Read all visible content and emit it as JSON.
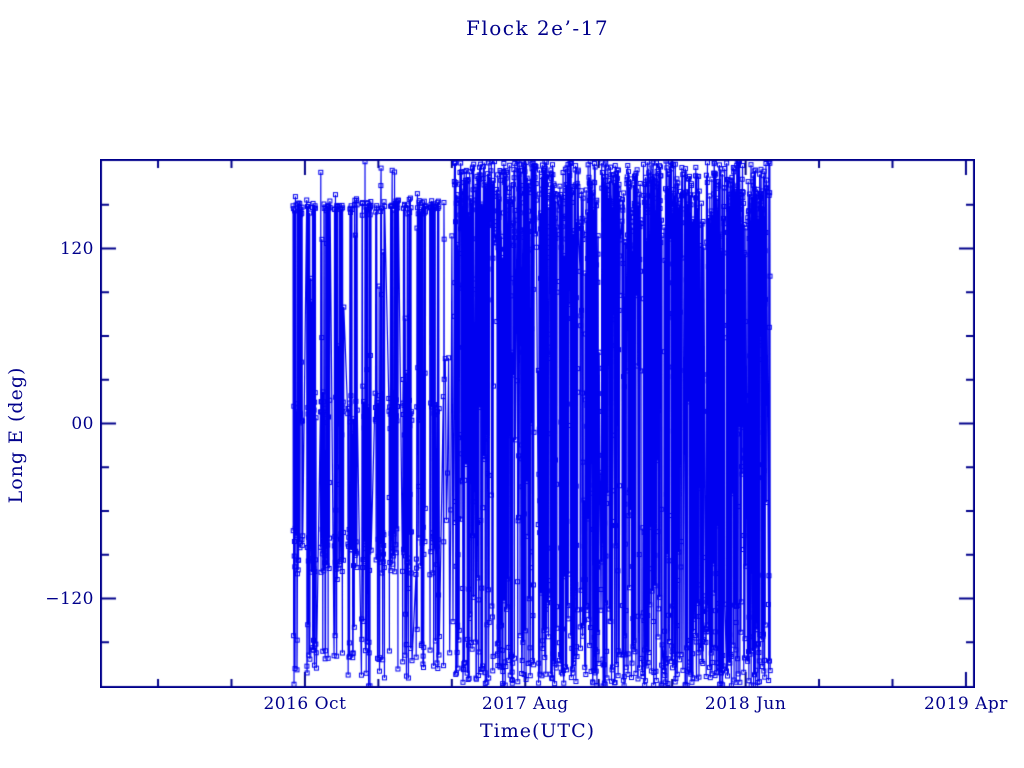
{
  "colors": {
    "background": "#ffffff",
    "axis": "#00008b",
    "text": "#00008b",
    "data": "#0000f0"
  },
  "chart_data": {
    "type": "scatter",
    "title": "Flock 2e’-17",
    "xlabel": "Time(UTC)",
    "ylabel": "Long E (deg)",
    "legend": null,
    "grid": false,
    "marker": "open-square",
    "marker_size_px": 4,
    "connect_points": true,
    "x_axis": {
      "unit": "months since 2016-01-01",
      "range": [
        -0.21,
        39.32
      ],
      "minor_tick_step": 3.3333,
      "minor_anchor": 9,
      "major_ticks": [
        {
          "t": 9,
          "label": "2016 Oct"
        },
        {
          "t": 19,
          "label": "2017 Aug"
        },
        {
          "t": 29,
          "label": "2018 Jun"
        },
        {
          "t": 39,
          "label": "2019 Apr"
        }
      ]
    },
    "y_axis": {
      "unit": "deg",
      "range": [
        -180,
        180
      ],
      "minor_tick_step": 30,
      "major_ticks": [
        {
          "v": 120,
          "label": "120"
        },
        {
          "v": 0,
          "label": "00"
        },
        {
          "v": -120,
          "label": "−120"
        }
      ]
    },
    "data_extent": {
      "t_first": 8.46,
      "t_last": 30.12,
      "description": "Dense wrap-around longitude track; points are open squares joined by near-vertical lines clipped at ±180°. Sep 2016–Apr 2017: discrete bands near +149°, +9°, −87° and −162°. May 2017–Jul 2018: dense cloud hugging +180° fading downward, sparse mid-range scatter, dense band hugging −180°."
    },
    "series_model": {
      "seed": 20160926,
      "phases": [
        {
          "name": "pre-drift-bands",
          "t_start": 8.46,
          "t_end": 15.32,
          "dt": 0.009,
          "burst_period": 0.62,
          "burst_duty": 0.72,
          "drop": 0.02,
          "bands": [
            {
              "kind": "gauss",
              "center": 149,
              "sigma": 2.6,
              "w": 0.2
            },
            {
              "kind": "gauss",
              "center": 9,
              "sigma": 6,
              "w": 0.24
            },
            {
              "kind": "uniform",
              "min": -104,
              "max": -71,
              "w": 0.29
            },
            {
              "kind": "gauss",
              "center": -162,
              "sigma": 9,
              "w": 0.13
            },
            {
              "kind": "uniform",
              "min": -180,
              "max": 180,
              "w": 0.14
            }
          ]
        },
        {
          "name": "transition",
          "t_start": 15.32,
          "t_end": 15.78,
          "dt": 0.05,
          "burst_period": 1,
          "burst_duty": 1,
          "drop": 0,
          "bands": [
            {
              "kind": "uniform",
              "min": -170,
              "max": 176,
              "w": 1
            }
          ]
        },
        {
          "name": "drift-cloud",
          "t_start": 15.78,
          "t_end": 30.12,
          "dt": 0.008,
          "burst_period": 0.95,
          "burst_duty": 0.93,
          "drop": 0.04,
          "bands": [
            {
              "kind": "fold_top",
              "sigma": 40,
              "w": 0.5
            },
            {
              "kind": "uniform",
              "min": -30,
              "max": 100,
              "w": 0.13
            },
            {
              "kind": "uniform",
              "min": -135,
              "max": -30,
              "w": 0.12
            },
            {
              "kind": "fold_bottom",
              "sigma": 25,
              "w": 0.25
            }
          ]
        }
      ]
    }
  }
}
